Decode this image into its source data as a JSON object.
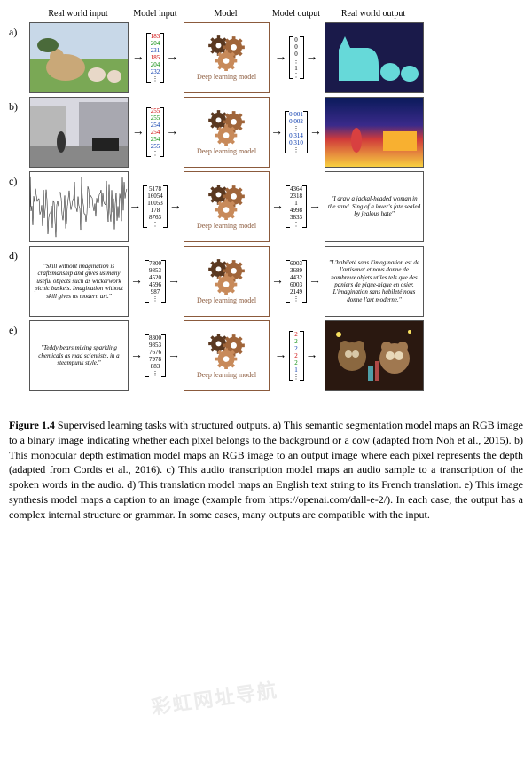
{
  "headers": {
    "col1": "Real world input",
    "col2": "Model input",
    "col3": "Model",
    "col4": "Model output",
    "col5": "Real world output"
  },
  "model_label": "Deep learning model",
  "model_border_color": "#8b5a3c",
  "gear_colors": [
    "#5a3820",
    "#a0653a",
    "#c88a5a"
  ],
  "rows": {
    "a": {
      "label": "a)",
      "input_vec": [
        "183",
        "204",
        "231",
        "185",
        "204",
        "232",
        "⋮"
      ],
      "input_colors": [
        "#cc0000",
        "#008800",
        "#0033aa",
        "#cc0000",
        "#008800",
        "#0033aa",
        "#000"
      ],
      "output_vec": [
        "0",
        "0",
        "0",
        "⋮",
        "1",
        "⋮"
      ],
      "output_colors": [
        "#000",
        "#000",
        "#000",
        "#000",
        "#000",
        "#000"
      ],
      "input_image": {
        "type": "photo_cows",
        "bg": "#7aa855",
        "fg": "#c9a878"
      },
      "output_image": {
        "type": "segmentation",
        "bg": "#1a1a4a",
        "fg": "#66d9d9"
      }
    },
    "b": {
      "label": "b)",
      "input_vec": [
        "255",
        "255",
        "254",
        "254",
        "254",
        "255",
        "⋮"
      ],
      "input_colors": [
        "#cc0000",
        "#008800",
        "#0033aa",
        "#cc0000",
        "#008800",
        "#0033aa",
        "#000"
      ],
      "output_vec": [
        "0.001",
        "0.002",
        "⋮",
        "0.314",
        "0.310",
        "⋮"
      ],
      "output_colors": [
        "#0033aa",
        "#0033aa",
        "#000",
        "#0033aa",
        "#0033aa",
        "#000"
      ],
      "input_image": {
        "type": "photo_street",
        "bg": "#d8d8e0"
      },
      "output_image": {
        "type": "depth_map"
      }
    },
    "c": {
      "label": "c)",
      "input_vec": [
        "5178",
        "16054",
        "10053",
        "178",
        "8763",
        "⋮"
      ],
      "input_colors": [
        "#000",
        "#000",
        "#000",
        "#000",
        "#000",
        "#000"
      ],
      "output_vec": [
        "4364",
        "2318",
        "1",
        "4998",
        "3833",
        "⋮"
      ],
      "output_colors": [
        "#000",
        "#000",
        "#000",
        "#000",
        "#000",
        "#000"
      ],
      "input_image": {
        "type": "waveform"
      },
      "output_text": "\"I draw a jackal-headed woman in the sand. Sing of a lover's fate sealed by jealous hate\""
    },
    "d": {
      "label": "d)",
      "input_text": "\"Skill without imagination is craftsmanship and gives us many useful objects such as wickerwork picnic baskets. Imagination without skill gives us modern art.\"",
      "input_vec": [
        "7800",
        "9853",
        "4520",
        "4596",
        "987",
        "⋮"
      ],
      "input_colors": [
        "#000",
        "#000",
        "#000",
        "#000",
        "#000",
        "#000"
      ],
      "output_vec": [
        "6003",
        "3689",
        "4432",
        "6003",
        "2149",
        "⋮"
      ],
      "output_colors": [
        "#000",
        "#000",
        "#000",
        "#000",
        "#000",
        "#000"
      ],
      "output_text": "\"L'habileté sans l'imagination est de l'artisanat et nous donne de nombreux objets utiles tels que des paniers de pique-nique en osier. L'imagination sans habileté nous donne l'art moderne.\""
    },
    "e": {
      "label": "e)",
      "input_text": "\"Teddy bears mixing sparkling chemicals as mad scientists, in a steampunk style.\"",
      "input_vec": [
        "8300",
        "9853",
        "7676",
        "7978",
        "883",
        "⋮"
      ],
      "input_colors": [
        "#000",
        "#000",
        "#000",
        "#000",
        "#000",
        "#000"
      ],
      "output_vec": [
        "2",
        "2",
        "2",
        "2",
        "2",
        "1",
        "⋮"
      ],
      "output_colors": [
        "#cc0000",
        "#008800",
        "#0033aa",
        "#cc0000",
        "#008800",
        "#0033aa",
        "#000"
      ],
      "output_image": {
        "type": "teddy_bears"
      }
    }
  },
  "caption": {
    "bold": "Figure 1.4",
    "text": " Supervised learning tasks with structured outputs. a) This semantic segmentation model maps an RGB image to a binary image indicating whether each pixel belongs to the background or a cow (adapted from Noh et al., 2015). b) This monocular depth estimation model maps an RGB image to an output image where each pixel represents the depth (adapted from Cordts et al., 2016). c) This audio transcription model maps an audio sample to a transcription of the spoken words in the audio. d) This translation model maps an English text string to its French translation. e) This image synthesis model maps a caption to an image (example from https://openai.com/dall-e-2/). In each case, the output has a complex internal structure or grammar. In some cases, many outputs are compatible with the input."
  },
  "watermark": "彩虹网址导航"
}
